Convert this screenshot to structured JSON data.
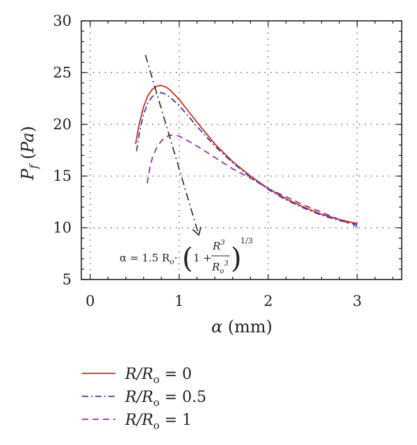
{
  "chart_data": {
    "type": "line",
    "xlabel": "α (mm)",
    "ylabel": "P_f (Pa)",
    "xlim": [
      -0.1,
      3.5
    ],
    "ylim": [
      5,
      30
    ],
    "x_ticks": [
      0,
      1,
      2,
      3
    ],
    "y_ticks": [
      5,
      10,
      15,
      20,
      25,
      30
    ],
    "grid": "dotted",
    "legend_position": "below-plot",
    "series": [
      {
        "name": "R/R_o = 0",
        "color": "#cc2a1c",
        "style": "solid",
        "points": [
          [
            0.51,
            18.1
          ],
          [
            0.55,
            20.0
          ],
          [
            0.6,
            21.7
          ],
          [
            0.65,
            22.8
          ],
          [
            0.7,
            23.4
          ],
          [
            0.75,
            23.7
          ],
          [
            0.8,
            23.75
          ],
          [
            0.85,
            23.6
          ],
          [
            0.9,
            23.3
          ],
          [
            1.0,
            22.4
          ],
          [
            1.1,
            21.3
          ],
          [
            1.2,
            20.2
          ],
          [
            1.4,
            18.1
          ],
          [
            1.6,
            16.4
          ],
          [
            1.8,
            15.0
          ],
          [
            2.0,
            13.8
          ],
          [
            2.2,
            12.8
          ],
          [
            2.4,
            12.0
          ],
          [
            2.6,
            11.3
          ],
          [
            2.8,
            10.8
          ],
          [
            3.0,
            10.4
          ]
        ]
      },
      {
        "name": "R/R_o = 0.5",
        "color": "#3a3fa0",
        "style": "dash-dot",
        "points": [
          [
            0.52,
            17.4
          ],
          [
            0.56,
            19.5
          ],
          [
            0.6,
            21.0
          ],
          [
            0.65,
            22.1
          ],
          [
            0.7,
            22.7
          ],
          [
            0.75,
            23.0
          ],
          [
            0.8,
            23.05
          ],
          [
            0.85,
            22.9
          ],
          [
            0.9,
            22.6
          ],
          [
            1.0,
            21.8
          ],
          [
            1.1,
            20.8
          ],
          [
            1.2,
            19.8
          ],
          [
            1.4,
            17.9
          ],
          [
            1.6,
            16.3
          ],
          [
            1.8,
            14.9
          ],
          [
            2.0,
            13.7
          ],
          [
            2.2,
            12.7
          ],
          [
            2.4,
            11.9
          ],
          [
            2.6,
            11.2
          ],
          [
            2.8,
            10.7
          ],
          [
            3.0,
            10.3
          ]
        ]
      },
      {
        "name": "R/R_o = 1",
        "color": "#8b3a9a",
        "style": "dashed",
        "points": [
          [
            0.64,
            14.3
          ],
          [
            0.67,
            15.8
          ],
          [
            0.7,
            16.8
          ],
          [
            0.75,
            17.8
          ],
          [
            0.8,
            18.4
          ],
          [
            0.85,
            18.8
          ],
          [
            0.9,
            18.95
          ],
          [
            0.95,
            18.95
          ],
          [
            1.0,
            18.85
          ],
          [
            1.1,
            18.4
          ],
          [
            1.2,
            17.9
          ],
          [
            1.4,
            16.8
          ],
          [
            1.6,
            15.7
          ],
          [
            1.8,
            14.8
          ],
          [
            2.0,
            13.8
          ],
          [
            2.2,
            13.0
          ],
          [
            2.4,
            12.2
          ],
          [
            2.6,
            11.5
          ],
          [
            2.8,
            10.8
          ],
          [
            3.0,
            10.1
          ]
        ]
      }
    ],
    "annotation": {
      "text": "α = 1.5 R_o·(1 + R³/R_o³)^1/3",
      "lhs": "α = 1.5 R",
      "sub": "o",
      "one_plus": "1 +",
      "num": "R",
      "num_sup": "3",
      "den": "R",
      "den_sub": "o",
      "den_sup": "3",
      "exponent": "1/3",
      "arrow_from": [
        0.62,
        26.7
      ],
      "arrow_to": [
        1.22,
        9.3
      ]
    },
    "colors": {
      "axis": "#222222",
      "grid": "#444444"
    }
  }
}
